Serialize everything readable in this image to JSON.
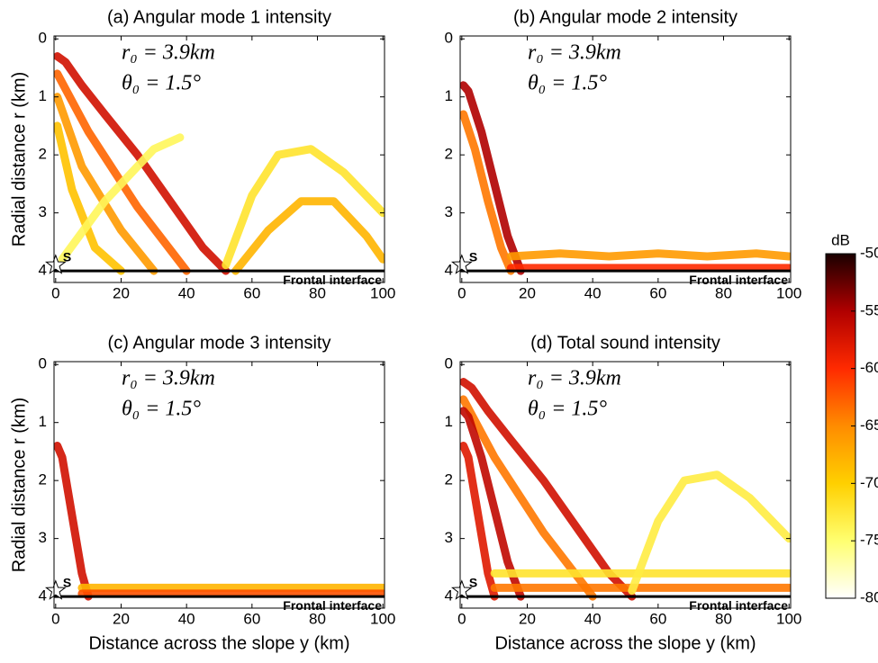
{
  "chart_data": [
    {
      "type": "heatmap",
      "title": "(a) Angular mode 1 intensity",
      "ylabel": "Radial distance r (km)",
      "xlim": [
        -0.5,
        100.5
      ],
      "ylim": [
        -0.05,
        4.2
      ],
      "xticks": [
        0,
        20,
        40,
        60,
        80,
        100
      ],
      "yticks": [
        0,
        1,
        2,
        3,
        4
      ],
      "annotations": [
        "r₀ = 3.9km",
        "θ₀ = 1.5°"
      ],
      "source": {
        "label": "S",
        "y": 0,
        "r": 3.9
      },
      "interface": {
        "label": "Frontal interface",
        "r": 4
      },
      "beams": [
        {
          "y": [
            0.5,
            3,
            8,
            15,
            25,
            35,
            45,
            52
          ],
          "r": [
            0.3,
            0.4,
            0.8,
            1.3,
            2.0,
            2.8,
            3.6,
            4.0
          ],
          "level": -57
        },
        {
          "y": [
            0.5,
            10,
            25,
            40
          ],
          "r": [
            0.6,
            1.6,
            2.9,
            4.0
          ],
          "level": -63
        },
        {
          "y": [
            0.5,
            8,
            20,
            30
          ],
          "r": [
            1.0,
            2.2,
            3.3,
            4.0
          ],
          "level": -66
        },
        {
          "y": [
            0.5,
            5,
            12,
            20
          ],
          "r": [
            1.5,
            2.6,
            3.6,
            4.0
          ],
          "level": -69
        },
        {
          "y": [
            2,
            15,
            30,
            38
          ],
          "r": [
            3.8,
            2.8,
            1.9,
            1.7
          ],
          "level": -74
        },
        {
          "y": [
            52,
            60,
            68,
            78,
            88,
            100
          ],
          "r": [
            3.9,
            2.7,
            2.0,
            1.9,
            2.3,
            3.0
          ],
          "level": -72
        },
        {
          "y": [
            55,
            65,
            75,
            85,
            95,
            100
          ],
          "r": [
            4.0,
            3.3,
            2.8,
            2.8,
            3.4,
            3.8
          ],
          "level": -68
        }
      ]
    },
    {
      "type": "heatmap",
      "title": "(b) Angular mode 2 intensity",
      "xlim": [
        -0.5,
        100.5
      ],
      "ylim": [
        -0.05,
        4.2
      ],
      "xticks": [
        0,
        20,
        40,
        60,
        80,
        100
      ],
      "yticks": [
        0,
        1,
        2,
        3,
        4
      ],
      "annotations": [
        "r₀ = 3.9km",
        "θ₀ = 1.5°"
      ],
      "source": {
        "label": "S",
        "y": 0,
        "r": 3.9
      },
      "interface": {
        "label": "Frontal interface",
        "r": 4
      },
      "beams": [
        {
          "y": [
            0.5,
            2,
            6,
            10,
            14,
            18
          ],
          "r": [
            0.8,
            0.9,
            1.6,
            2.5,
            3.4,
            4.0
          ],
          "level": -55
        },
        {
          "y": [
            0.5,
            4,
            8,
            12,
            15
          ],
          "r": [
            1.3,
            1.9,
            2.8,
            3.6,
            4.0
          ],
          "level": -64
        },
        {
          "y": [
            15,
            30,
            45,
            60,
            75,
            90,
            100
          ],
          "r": [
            3.75,
            3.7,
            3.75,
            3.7,
            3.75,
            3.7,
            3.75
          ],
          "level": -66
        },
        {
          "y": [
            15,
            100
          ],
          "r": [
            3.95,
            3.95
          ],
          "level": -60
        }
      ]
    },
    {
      "type": "heatmap",
      "title": "(c) Angular mode 3 intensity",
      "xlabel": "Distance across the slope y (km)",
      "ylabel": "Radial distance r (km)",
      "xlim": [
        -0.5,
        100.5
      ],
      "ylim": [
        -0.05,
        4.2
      ],
      "xticks": [
        0,
        20,
        40,
        60,
        80,
        100
      ],
      "yticks": [
        0,
        1,
        2,
        3,
        4
      ],
      "annotations": [
        "r₀ = 3.9km",
        "θ₀ = 1.5°"
      ],
      "source": {
        "label": "S",
        "y": 0,
        "r": 3.9
      },
      "interface": {
        "label": "Frontal interface",
        "r": 4
      },
      "beams": [
        {
          "y": [
            0.5,
            2,
            5,
            8,
            10
          ],
          "r": [
            1.4,
            1.6,
            2.6,
            3.6,
            4.0
          ],
          "level": -57
        },
        {
          "y": [
            8,
            100
          ],
          "r": [
            3.85,
            3.85
          ],
          "level": -68
        },
        {
          "y": [
            8,
            100
          ],
          "r": [
            3.95,
            3.95
          ],
          "level": -62
        }
      ]
    },
    {
      "type": "heatmap",
      "title": "(d) Total sound intensity",
      "xlabel": "Distance across the slope y (km)",
      "xlim": [
        -0.5,
        100.5
      ],
      "ylim": [
        -0.05,
        4.2
      ],
      "xticks": [
        0,
        20,
        40,
        60,
        80,
        100
      ],
      "yticks": [
        0,
        1,
        2,
        3,
        4
      ],
      "annotations": [
        "r₀ = 3.9km",
        "θ₀ = 1.5°"
      ],
      "source": {
        "label": "S",
        "y": 0,
        "r": 3.9
      },
      "interface": {
        "label": "Frontal interface",
        "r": 4
      },
      "beams": [
        {
          "y": [
            0.5,
            3,
            8,
            15,
            25,
            35,
            45,
            52
          ],
          "r": [
            0.3,
            0.4,
            0.8,
            1.3,
            2.0,
            2.8,
            3.6,
            4.0
          ],
          "level": -57
        },
        {
          "y": [
            0.5,
            10,
            25,
            40
          ],
          "r": [
            0.6,
            1.6,
            2.9,
            4.0
          ],
          "level": -64
        },
        {
          "y": [
            0.5,
            2,
            6,
            10,
            14,
            18
          ],
          "r": [
            0.8,
            0.9,
            1.6,
            2.5,
            3.4,
            4.0
          ],
          "level": -56
        },
        {
          "y": [
            0.5,
            2,
            5,
            8,
            10
          ],
          "r": [
            1.4,
            1.6,
            2.6,
            3.6,
            4.0
          ],
          "level": -58
        },
        {
          "y": [
            10,
            100
          ],
          "r": [
            3.6,
            3.6
          ],
          "level": -72
        },
        {
          "y": [
            10,
            100
          ],
          "r": [
            3.85,
            3.85
          ],
          "level": -64
        },
        {
          "y": [
            52,
            60,
            68,
            78,
            88,
            100
          ],
          "r": [
            3.9,
            2.7,
            2.0,
            1.9,
            2.3,
            3.0
          ],
          "level": -73
        }
      ]
    }
  ],
  "colorbar": {
    "label": "dB",
    "lim": [
      -80,
      -50
    ],
    "ticks": [
      -50,
      -55,
      -60,
      -65,
      -70,
      -75,
      -80
    ],
    "colors": [
      "#ffffff",
      "#ffff70",
      "#ffd000",
      "#ff8c00",
      "#ff2a00",
      "#b00000",
      "#1a0000"
    ]
  }
}
